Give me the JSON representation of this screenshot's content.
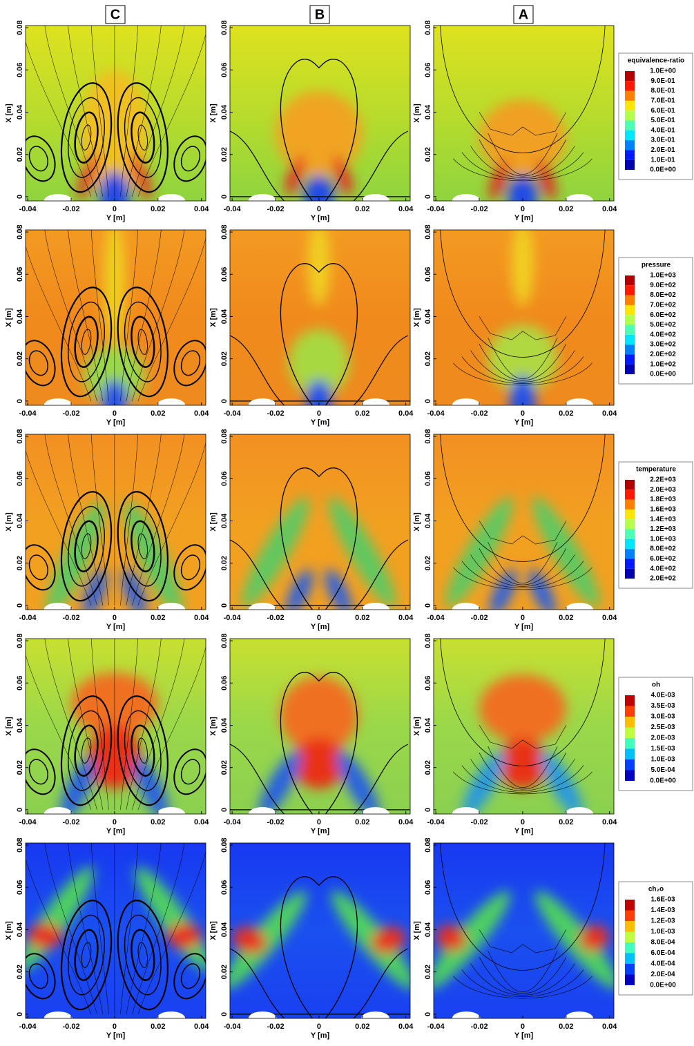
{
  "columns": [
    "C",
    "B",
    "A"
  ],
  "chart_data": [
    {
      "type": "contour",
      "colorbar_title": "equivalence-ratio",
      "xlabel": "Y [m]",
      "ylabel": "X [m]",
      "xlim": [
        -0.041,
        0.042
      ],
      "ylim": [
        -0.002,
        0.081
      ],
      "xticks": [
        -0.04,
        -0.02,
        0,
        0.02,
        0.04
      ],
      "yticks": [
        0,
        0.02,
        0.04,
        0.06,
        0.08
      ],
      "levels": [
        {
          "value": 1.0,
          "label": "1.0E+00"
        },
        {
          "value": 0.9,
          "label": "9.0E-01"
        },
        {
          "value": 0.8,
          "label": "8.0E-01"
        },
        {
          "value": 0.7,
          "label": "7.0E-01"
        },
        {
          "value": 0.6,
          "label": "6.0E-01"
        },
        {
          "value": 0.5,
          "label": "5.0E-01"
        },
        {
          "value": 0.4,
          "label": "4.0E-01"
        },
        {
          "value": 0.3,
          "label": "3.0E-01"
        },
        {
          "value": 0.2,
          "label": "2.0E-01"
        },
        {
          "value": 0.1,
          "label": "1.0E-01"
        },
        {
          "value": 0.0,
          "label": "0.0E+00"
        }
      ]
    },
    {
      "type": "contour",
      "colorbar_title": "pressure",
      "xlabel": "Y [m]",
      "ylabel": "X [m]",
      "xlim": [
        -0.041,
        0.042
      ],
      "ylim": [
        -0.002,
        0.081
      ],
      "xticks": [
        -0.04,
        -0.02,
        0,
        0.02,
        0.04
      ],
      "yticks": [
        0,
        0.02,
        0.04,
        0.06,
        0.08
      ],
      "levels": [
        {
          "value": 1000,
          "label": "1.0E+03"
        },
        {
          "value": 900,
          "label": "9.0E+02"
        },
        {
          "value": 800,
          "label": "8.0E+02"
        },
        {
          "value": 700,
          "label": "7.0E+02"
        },
        {
          "value": 600,
          "label": "6.0E+02"
        },
        {
          "value": 500,
          "label": "5.0E+02"
        },
        {
          "value": 400,
          "label": "4.0E+02"
        },
        {
          "value": 300,
          "label": "3.0E+02"
        },
        {
          "value": 200,
          "label": "2.0E+02"
        },
        {
          "value": 100,
          "label": "1.0E+02"
        },
        {
          "value": 0,
          "label": "0.0E+00"
        }
      ]
    },
    {
      "type": "contour",
      "colorbar_title": "temperature",
      "xlabel": "Y [m]",
      "ylabel": "X [m]",
      "xlim": [
        -0.041,
        0.042
      ],
      "ylim": [
        -0.002,
        0.081
      ],
      "xticks": [
        -0.04,
        -0.02,
        0,
        0.02,
        0.04
      ],
      "yticks": [
        0,
        0.02,
        0.04,
        0.06,
        0.08
      ],
      "levels": [
        {
          "value": 2200,
          "label": "2.2E+03"
        },
        {
          "value": 2000,
          "label": "2.0E+03"
        },
        {
          "value": 1800,
          "label": "1.8E+03"
        },
        {
          "value": 1600,
          "label": "1.6E+03"
        },
        {
          "value": 1400,
          "label": "1.4E+03"
        },
        {
          "value": 1200,
          "label": "1.2E+03"
        },
        {
          "value": 1000,
          "label": "1.0E+03"
        },
        {
          "value": 800,
          "label": "8.0E+02"
        },
        {
          "value": 600,
          "label": "6.0E+02"
        },
        {
          "value": 400,
          "label": "4.0E+02"
        },
        {
          "value": 200,
          "label": "2.0E+02"
        }
      ]
    },
    {
      "type": "contour",
      "colorbar_title": "oh",
      "xlabel": "Y [m]",
      "ylabel": "X [m]",
      "xlim": [
        -0.041,
        0.042
      ],
      "ylim": [
        -0.002,
        0.081
      ],
      "xticks": [
        -0.04,
        -0.02,
        0,
        0.02,
        0.04
      ],
      "yticks": [
        0,
        0.02,
        0.04,
        0.06,
        0.08
      ],
      "levels": [
        {
          "value": 0.004,
          "label": "4.0E-03"
        },
        {
          "value": 0.0035,
          "label": "3.5E-03"
        },
        {
          "value": 0.003,
          "label": "3.0E-03"
        },
        {
          "value": 0.0025,
          "label": "2.5E-03"
        },
        {
          "value": 0.002,
          "label": "2.0E-03"
        },
        {
          "value": 0.0015,
          "label": "1.5E-03"
        },
        {
          "value": 0.001,
          "label": "1.0E-03"
        },
        {
          "value": 0.0005,
          "label": "5.0E-04"
        },
        {
          "value": 0,
          "label": "0.0E+00"
        }
      ]
    },
    {
      "type": "contour",
      "colorbar_title": "ch₂o",
      "xlabel": "Y [m]",
      "ylabel": "X [m]",
      "xlim": [
        -0.041,
        0.042
      ],
      "ylim": [
        -0.002,
        0.081
      ],
      "xticks": [
        -0.04,
        -0.02,
        0,
        0.02,
        0.04
      ],
      "yticks": [
        0,
        0.02,
        0.04,
        0.06,
        0.08
      ],
      "levels": [
        {
          "value": 0.0016,
          "label": "1.6E-03"
        },
        {
          "value": 0.0014,
          "label": "1.4E-03"
        },
        {
          "value": 0.0012,
          "label": "1.2E-03"
        },
        {
          "value": 0.001,
          "label": "1.0E-03"
        },
        {
          "value": 0.0008,
          "label": "8.0E-04"
        },
        {
          "value": 0.0006,
          "label": "6.0E-04"
        },
        {
          "value": 0.0004,
          "label": "4.0E-04"
        },
        {
          "value": 0.0002,
          "label": "2.0E-04"
        },
        {
          "value": 0,
          "label": "0.0E+00"
        }
      ]
    }
  ]
}
